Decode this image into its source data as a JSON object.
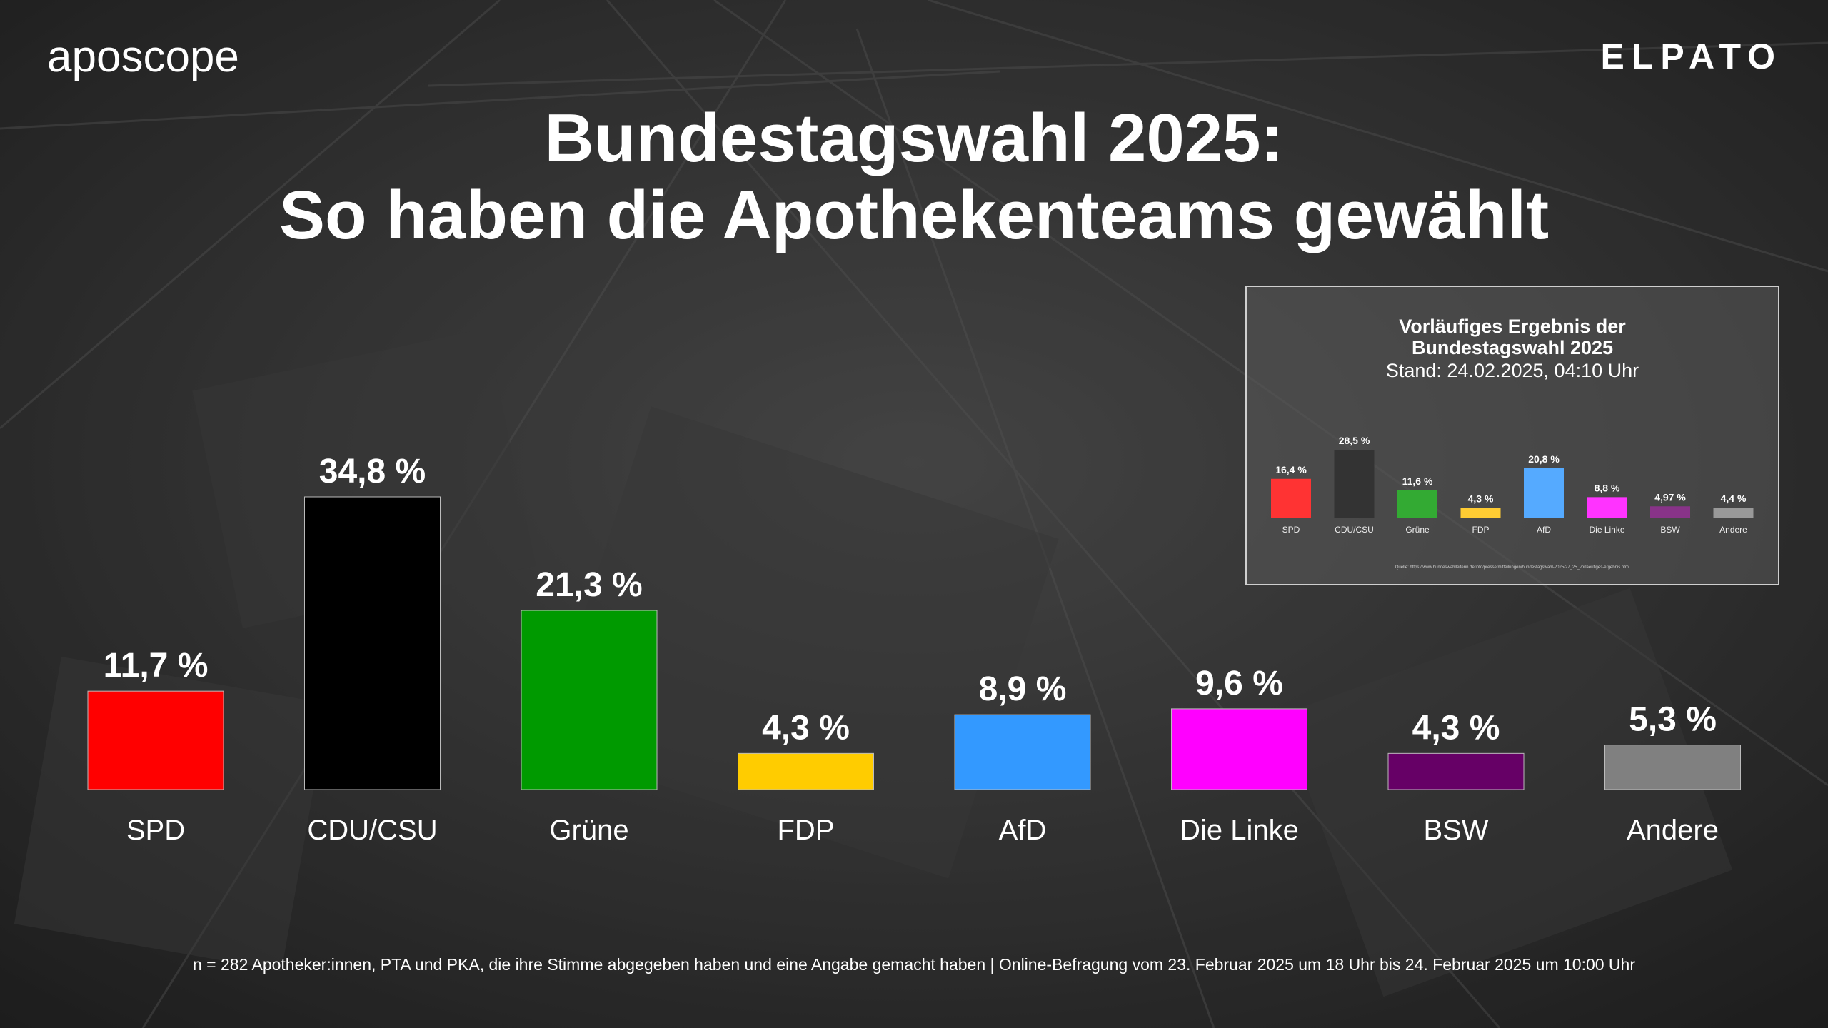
{
  "header": {
    "logo_left": "aposcope",
    "logo_right": "ELPATO",
    "title_line1": "Bundestagswahl 2025:",
    "title_line2": "So haben die Apothekenteams gewählt"
  },
  "chart_data": [
    {
      "type": "bar",
      "title": "Bundestagswahl 2025: So haben die Apothekenteams gewählt",
      "categories": [
        "SPD",
        "CDU/CSU",
        "Grüne",
        "FDP",
        "AfD",
        "Die Linke",
        "BSW",
        "Andere"
      ],
      "values": [
        11.7,
        34.8,
        21.3,
        4.3,
        8.9,
        9.6,
        4.3,
        5.3
      ],
      "value_labels": [
        "11,7 %",
        "34,8 %",
        "21,3 %",
        "4,3 %",
        "8,9 %",
        "9,6 %",
        "4,3 %",
        "5,3 %"
      ],
      "colors": [
        "#ff0000",
        "#000000",
        "#009a00",
        "#ffcc00",
        "#3399ff",
        "#ff00ff",
        "#660066",
        "#808080"
      ],
      "xlabel": "",
      "ylabel": "",
      "ylim": [
        0,
        34.8
      ],
      "grid": false
    },
    {
      "type": "bar",
      "title": "Vorläufiges Ergebnis der Bundestagswahl 2025",
      "subtitle": "Stand: 24.02.2025, 04:10 Uhr",
      "categories": [
        "SPD",
        "CDU/CSU",
        "Grüne",
        "FDP",
        "AfD",
        "Die Linke",
        "BSW",
        "Andere"
      ],
      "values": [
        16.4,
        28.5,
        11.6,
        4.3,
        20.8,
        8.8,
        4.97,
        4.4
      ],
      "value_labels": [
        "16,4 %",
        "28,5 %",
        "11,6 %",
        "4,3 %",
        "20,8 %",
        "8,8 %",
        "4,97 %",
        "4,4 %"
      ],
      "colors": [
        "#ff3333",
        "#333333",
        "#33aa33",
        "#ffcc33",
        "#55aaff",
        "#ff33ff",
        "#883388",
        "#999999"
      ],
      "source": "Quelle: https://www.bundeswahlleiterin.de/info/presse/mitteilungen/bundestagswahl-2025/27_25_vorlaeufiges-ergebnis.html",
      "ylim": [
        0,
        28.5
      ]
    }
  ],
  "inset": {
    "title_line1": "Vorläufiges Ergebnis der",
    "title_line2": "Bundestagswahl 2025",
    "subtitle": "Stand: 24.02.2025, 04:10 Uhr",
    "source": "Quelle: https://www.bundeswahlleiterin.de/info/presse/mitteilungen/bundestagswahl-2025/27_25_vorlaeufiges-ergebnis.html"
  },
  "footnote": "n = 282 Apotheker:innen, PTA und PKA, die ihre Stimme abgegeben haben und eine Angabe gemacht haben | Online-Befragung vom 23. Februar 2025 um 18 Uhr bis 24. Februar 2025 um 10:00 Uhr"
}
